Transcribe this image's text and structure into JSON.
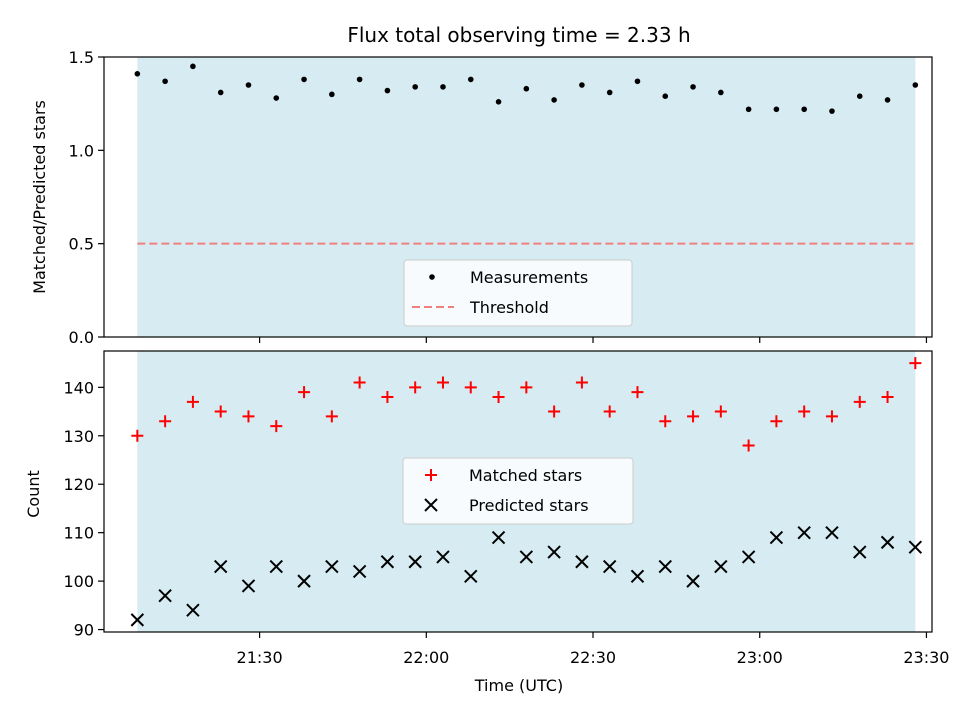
{
  "chart_data": {
    "title": "Flux total observing time = 2.33 h",
    "xlabel": "Time (UTC)",
    "x_tick_labels": [
      "21:30",
      "22:00",
      "22:30",
      "23:00",
      "23:30"
    ],
    "x_ticks_minutes": [
      90,
      120,
      150,
      180,
      210
    ],
    "times": [
      "21:08",
      "21:13",
      "21:18",
      "21:23",
      "21:28",
      "21:33",
      "21:38",
      "21:43",
      "21:48",
      "21:53",
      "21:58",
      "22:03",
      "22:08",
      "22:13",
      "22:18",
      "22:23",
      "22:28",
      "22:33",
      "22:38",
      "22:43",
      "22:48",
      "22:53",
      "22:58",
      "23:03",
      "23:08",
      "23:13",
      "23:18",
      "23:23",
      "23:28"
    ],
    "observing_window": [
      "21:08",
      "23:28"
    ],
    "shade_color": "#add8e6",
    "panels": [
      {
        "type": "scatter",
        "ylabel": "Matched/Predicted stars",
        "ylim": [
          0,
          1.5
        ],
        "y_ticks": [
          0.0,
          0.5,
          1.0,
          1.5
        ],
        "y_tick_labels": [
          "0.0",
          "0.5",
          "1.0",
          "1.5"
        ],
        "legend_position": "lower-center",
        "threshold": 0.5,
        "series": [
          {
            "name": "Measurements",
            "marker": "dot",
            "color": "#000000",
            "values": [
              1.41,
              1.37,
              1.45,
              1.31,
              1.35,
              1.28,
              1.38,
              1.3,
              1.38,
              1.32,
              1.34,
              1.34,
              1.38,
              1.26,
              1.33,
              1.27,
              1.35,
              1.31,
              1.37,
              1.29,
              1.34,
              1.31,
              1.22,
              1.22,
              1.22,
              1.21,
              1.29,
              1.27,
              1.35
            ]
          },
          {
            "name": "Threshold",
            "marker": "dashed-line",
            "color": "#f08080"
          }
        ]
      },
      {
        "type": "scatter",
        "ylabel": "Count",
        "ylim": [
          89.5,
          147.5
        ],
        "y_ticks": [
          90,
          100,
          110,
          120,
          130,
          140
        ],
        "y_tick_labels": [
          "90",
          "100",
          "110",
          "120",
          "130",
          "140"
        ],
        "legend_position": "center",
        "series": [
          {
            "name": "Matched stars",
            "marker": "plus",
            "color": "#ff0000",
            "values": [
              130,
              133,
              137,
              135,
              134,
              132,
              139,
              134,
              141,
              138,
              140,
              141,
              140,
              138,
              140,
              135,
              141,
              135,
              139,
              133,
              134,
              135,
              128,
              133,
              135,
              134,
              137,
              138,
              145
            ]
          },
          {
            "name": "Predicted stars",
            "marker": "x",
            "color": "#000000",
            "values": [
              92,
              97,
              94,
              103,
              99,
              103,
              100,
              103,
              102,
              104,
              104,
              105,
              101,
              109,
              105,
              106,
              104,
              103,
              101,
              103,
              100,
              103,
              105,
              109,
              110,
              110,
              106,
              108,
              107
            ]
          }
        ]
      }
    ]
  }
}
